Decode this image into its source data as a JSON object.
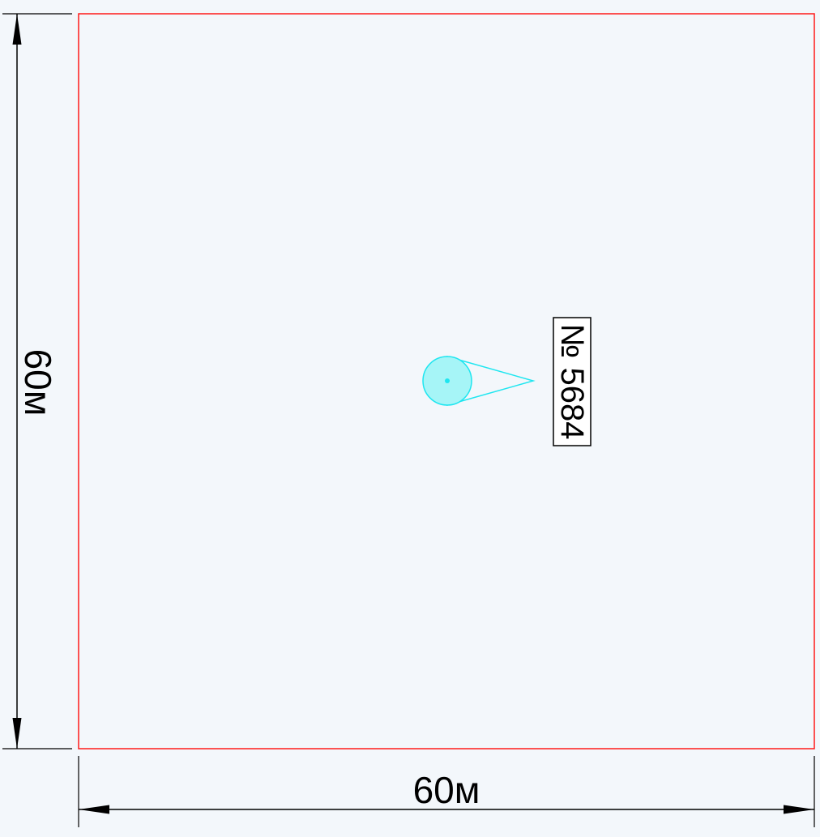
{
  "plan": {
    "width_label": "60м",
    "height_label": "60м",
    "marker_label": "№ 5684"
  },
  "colors": {
    "background": "#f3f7fb",
    "boundary": "#ff1a1a",
    "dimension": "#000000",
    "marker_stroke": "#1ee6f0",
    "marker_fill": "#a6f5f7",
    "label_border": "#000000",
    "label_fill": "#ffffff"
  }
}
